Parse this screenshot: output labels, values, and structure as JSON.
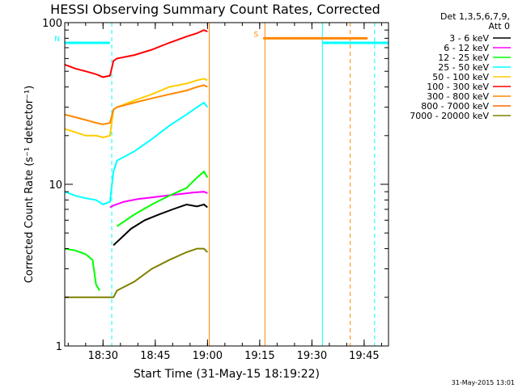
{
  "chart_data": {
    "type": "line",
    "title": "HESSI Observing Summary Count Rates, Corrected",
    "xlabel": "Start Time (31-May-15 18:19:22)",
    "ylabel": "Corrected Count Rate (s⁻¹ detector⁻¹)",
    "y_scale": "log",
    "ylim": [
      1,
      100
    ],
    "xlim_minutes_after_1819": [
      0,
      93
    ],
    "x_ticks": [
      {
        "label": "18:30",
        "minutes": 11
      },
      {
        "label": "18:45",
        "minutes": 26
      },
      {
        "label": "19:00",
        "minutes": 41
      },
      {
        "label": "19:15",
        "minutes": 56
      },
      {
        "label": "19:30",
        "minutes": 71
      },
      {
        "label": "19:45",
        "minutes": 86
      }
    ],
    "y_ticks": [
      {
        "label": "1",
        "value": 1
      },
      {
        "label": "10",
        "value": 10
      },
      {
        "label": "100",
        "value": 100
      }
    ],
    "legend": {
      "placement": "right",
      "header": [
        "Det 1,3,5,6,7,9,",
        "Att 0"
      ]
    },
    "series": [
      {
        "name": "3 - 6 keV",
        "color": "#000000",
        "x": [
          0,
          6,
          13,
          14,
          15,
          16,
          19,
          23,
          27,
          31,
          35,
          38,
          40,
          41
        ],
        "y": [
          null,
          null,
          null,
          4.2,
          4.4,
          4.6,
          5.3,
          6.0,
          6.5,
          7.0,
          7.5,
          7.3,
          7.5,
          7.2
        ]
      },
      {
        "name": "6 - 12 keV",
        "color": "#ff00ff",
        "x": [
          13,
          14,
          17,
          21,
          25,
          29,
          33,
          37,
          40,
          41
        ],
        "y": [
          7.2,
          7.4,
          7.8,
          8.1,
          8.3,
          8.5,
          8.7,
          8.9,
          9.0,
          8.8
        ]
      },
      {
        "name": "12 - 25 keV",
        "color": "#00ff00",
        "x": [
          0,
          3,
          6,
          8,
          9,
          10,
          14,
          15,
          20,
          25,
          30,
          35,
          38,
          40,
          41
        ],
        "y": [
          4,
          3.9,
          3.7,
          3.4,
          2.4,
          2.2,
          null,
          5.5,
          6.5,
          7.5,
          8.5,
          9.5,
          11,
          12,
          11
        ]
      },
      {
        "name": "25 - 50 keV",
        "color": "#00ffff",
        "x": [
          0,
          3,
          6,
          9,
          11,
          13,
          14,
          15,
          20,
          25,
          30,
          35,
          38,
          40,
          41
        ],
        "y": [
          9,
          8.5,
          8.2,
          8.0,
          7.5,
          7.8,
          12,
          14,
          16,
          19,
          23,
          27,
          30,
          32,
          30
        ]
      },
      {
        "name": "50 - 100 keV",
        "color": "#ffcc00",
        "x": [
          0,
          3,
          6,
          9,
          11,
          13,
          14,
          15,
          20,
          25,
          30,
          35,
          38,
          40,
          41
        ],
        "y": [
          22,
          21,
          20,
          20,
          19.5,
          20,
          29,
          30,
          33,
          36,
          40,
          42,
          44,
          45,
          44
        ]
      },
      {
        "name": "100 - 300 keV",
        "color": "#ff0000",
        "x": [
          0,
          3,
          6,
          9,
          11,
          13,
          14,
          15,
          20,
          25,
          30,
          35,
          38,
          40,
          41
        ],
        "y": [
          55,
          52,
          50,
          48,
          46,
          47,
          58,
          60,
          63,
          68,
          75,
          82,
          86,
          90,
          88
        ]
      },
      {
        "name": "300 - 800 keV",
        "color": "#ff8800",
        "x": [
          0,
          3,
          6,
          9,
          11,
          13,
          14,
          15,
          20,
          25,
          30,
          35,
          38,
          40,
          41
        ],
        "y": [
          27,
          26,
          25,
          24,
          23.5,
          24,
          29,
          30,
          32,
          34,
          36,
          38,
          40,
          41,
          40
        ]
      },
      {
        "name": "800 - 7000 keV",
        "color": "#ff6600",
        "x": [
          0,
          3,
          6,
          9,
          11,
          13,
          14,
          15,
          20,
          25,
          30,
          35,
          38,
          40,
          41
        ],
        "y": [
          null,
          null,
          null,
          null,
          null,
          null,
          null,
          null,
          null,
          null,
          null,
          null,
          null,
          null,
          null
        ]
      },
      {
        "name": "7000 - 20000 keV",
        "color": "#808000",
        "x": [
          0,
          3,
          6,
          9,
          11,
          13,
          14,
          15,
          20,
          25,
          30,
          35,
          38,
          40,
          41
        ],
        "y": [
          2,
          2,
          2,
          2,
          2,
          2,
          2,
          2.2,
          2.5,
          3,
          3.4,
          3.8,
          4,
          4,
          3.8
        ]
      }
    ],
    "flags": [
      {
        "label": "N",
        "color": "#00ffff",
        "x_start": 0,
        "x_end": 13,
        "level": 75
      },
      {
        "label": "S",
        "color": "#ff8800",
        "x_start": 57,
        "x_end": 87,
        "level": 80
      },
      {
        "label": "",
        "color": "#00ffff",
        "x_start": 74,
        "x_end": 93,
        "level": 75
      }
    ],
    "markers": [
      {
        "x": 13.5,
        "color": "#00ffff",
        "style": "dashed"
      },
      {
        "x": 41.5,
        "color": "#ff8800",
        "style": "solid"
      },
      {
        "x": 57.5,
        "color": "#ff8800",
        "style": "solid"
      },
      {
        "x": 74,
        "color": "#00ffff",
        "style": "solid"
      },
      {
        "x": 82,
        "color": "#ff8800",
        "style": "dashed"
      },
      {
        "x": 89,
        "color": "#00ffff",
        "style": "dashed"
      }
    ],
    "footer_date": "31-May-2015 13:01"
  }
}
